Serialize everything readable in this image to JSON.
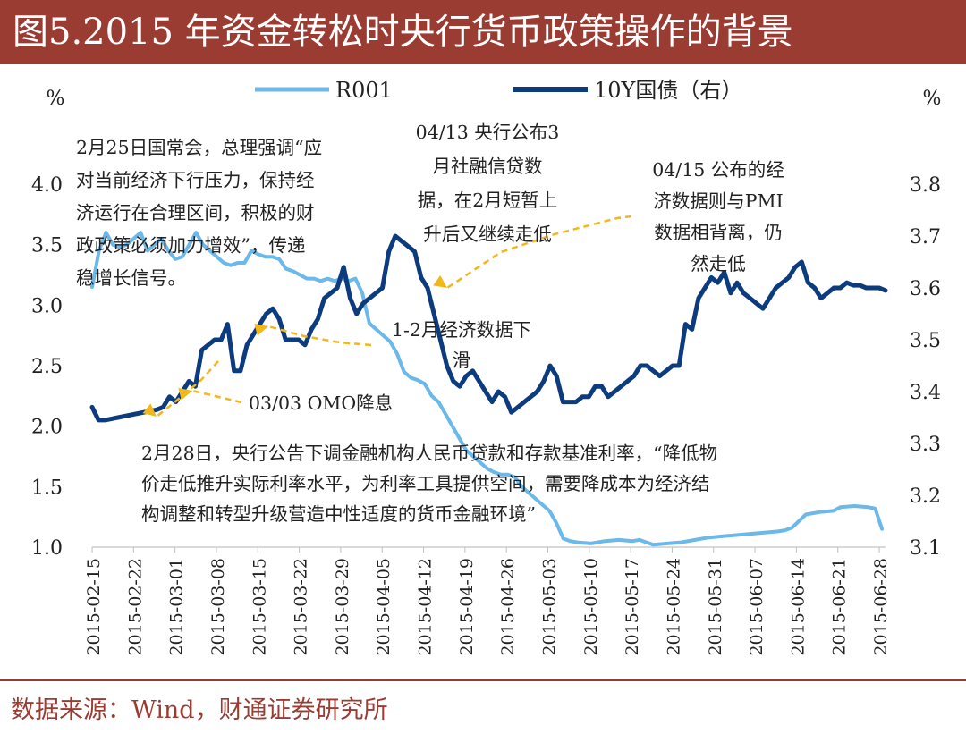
{
  "title": "图5.2015 年资金转松时央行货币政策操作的背景",
  "source": "数据来源：Wind，财通证券研究所",
  "colors": {
    "title_bg": "#9b3c33",
    "r001": "#6bb8ea",
    "bond": "#0d3c7e",
    "arrow": "#f2b71b",
    "text": "#222222"
  },
  "chart_data": {
    "type": "line",
    "left_unit": "%",
    "right_unit": "%",
    "left_ylim": [
      1.0,
      4.0
    ],
    "right_ylim": [
      3.1,
      3.8
    ],
    "left_ticks": [
      "1.0",
      "1.5",
      "2.0",
      "2.5",
      "3.0",
      "3.5",
      "4.0"
    ],
    "right_ticks": [
      "3.1",
      "3.2",
      "3.3",
      "3.4",
      "3.5",
      "3.6",
      "3.7",
      "3.8"
    ],
    "x_labels": [
      "2015-02-15",
      "2015-02-22",
      "2015-03-01",
      "2015-03-08",
      "2015-03-15",
      "2015-03-22",
      "2015-03-29",
      "2015-04-05",
      "2015-04-12",
      "2015-04-19",
      "2015-04-26",
      "2015-05-03",
      "2015-05-10",
      "2015-05-17",
      "2015-05-24",
      "2015-05-31",
      "2015-06-07",
      "2015-06-14",
      "2015-06-21",
      "2015-06-28"
    ],
    "legend": [
      "R001",
      "10Y国债（右）"
    ],
    "series": [
      {
        "name": "R001",
        "axis": "left",
        "points": [
          [
            0,
            3.15
          ],
          [
            1,
            3.45
          ],
          [
            2,
            3.6
          ],
          [
            3,
            3.5
          ],
          [
            4,
            3.48
          ],
          [
            5,
            3.5
          ],
          [
            6,
            3.55
          ],
          [
            7,
            3.6
          ],
          [
            8,
            3.45
          ],
          [
            9,
            3.5
          ],
          [
            10,
            3.55
          ],
          [
            11,
            3.45
          ],
          [
            12,
            3.38
          ],
          [
            13,
            3.4
          ],
          [
            14,
            3.5
          ],
          [
            15,
            3.6
          ],
          [
            16,
            3.5
          ],
          [
            17,
            3.45
          ],
          [
            18,
            3.4
          ],
          [
            19,
            3.35
          ],
          [
            20,
            3.33
          ],
          [
            21,
            3.35
          ],
          [
            22,
            3.35
          ],
          [
            23,
            3.45
          ],
          [
            24,
            3.42
          ],
          [
            25,
            3.4
          ],
          [
            26,
            3.4
          ],
          [
            27,
            3.38
          ],
          [
            28,
            3.3
          ],
          [
            29,
            3.28
          ],
          [
            30,
            3.25
          ],
          [
            31,
            3.22
          ],
          [
            32,
            3.22
          ],
          [
            33,
            3.2
          ],
          [
            34,
            3.22
          ],
          [
            35,
            3.2
          ],
          [
            36,
            3.22
          ],
          [
            37,
            3.2
          ],
          [
            38,
            3.22
          ],
          [
            39,
            3.1
          ],
          [
            40,
            2.85
          ],
          [
            41,
            2.8
          ],
          [
            42,
            2.75
          ],
          [
            43,
            2.7
          ],
          [
            44,
            2.6
          ],
          [
            45,
            2.45
          ],
          [
            46,
            2.4
          ],
          [
            47,
            2.38
          ],
          [
            48,
            2.35
          ],
          [
            49,
            2.25
          ],
          [
            50,
            2.2
          ],
          [
            51,
            2.1
          ],
          [
            52,
            2.0
          ],
          [
            53,
            1.9
          ],
          [
            54,
            1.8
          ],
          [
            55,
            1.75
          ],
          [
            56,
            1.7
          ],
          [
            57,
            1.65
          ],
          [
            58,
            1.62
          ],
          [
            59,
            1.6
          ],
          [
            60,
            1.6
          ],
          [
            61,
            1.58
          ],
          [
            62,
            1.5
          ],
          [
            63,
            1.45
          ],
          [
            64,
            1.4
          ],
          [
            65,
            1.35
          ],
          [
            66,
            1.3
          ],
          [
            67,
            1.2
          ],
          [
            68,
            1.07
          ],
          [
            69,
            1.05
          ],
          [
            70,
            1.04
          ],
          [
            72,
            1.03
          ],
          [
            74,
            1.05
          ],
          [
            76,
            1.06
          ],
          [
            78,
            1.05
          ],
          [
            79,
            1.06
          ],
          [
            80,
            1.04
          ],
          [
            81,
            1.02
          ],
          [
            83,
            1.03
          ],
          [
            85,
            1.04
          ],
          [
            87,
            1.06
          ],
          [
            89,
            1.08
          ],
          [
            91,
            1.09
          ],
          [
            93,
            1.1
          ],
          [
            95,
            1.11
          ],
          [
            97,
            1.12
          ],
          [
            99,
            1.13
          ],
          [
            100,
            1.14
          ],
          [
            101,
            1.16
          ],
          [
            103,
            1.27
          ],
          [
            105,
            1.29
          ],
          [
            107,
            1.3
          ],
          [
            108,
            1.33
          ],
          [
            110,
            1.34
          ],
          [
            112,
            1.33
          ],
          [
            113,
            1.32
          ],
          [
            114,
            1.15
          ]
        ]
      },
      {
        "name": "10Y国债（右）",
        "axis": "right",
        "points": [
          [
            0,
            3.37
          ],
          [
            1,
            3.345
          ],
          [
            2,
            3.345
          ],
          [
            4,
            3.35
          ],
          [
            6,
            3.355
          ],
          [
            8,
            3.36
          ],
          [
            10,
            3.365
          ],
          [
            11,
            3.37
          ],
          [
            12,
            3.39
          ],
          [
            13,
            3.38
          ],
          [
            14,
            3.4
          ],
          [
            15,
            3.42
          ],
          [
            16,
            3.41
          ],
          [
            17,
            3.48
          ],
          [
            18,
            3.49
          ],
          [
            19,
            3.5
          ],
          [
            20,
            3.5
          ],
          [
            21,
            3.53
          ],
          [
            22,
            3.44
          ],
          [
            23,
            3.44
          ],
          [
            24,
            3.49
          ],
          [
            25,
            3.51
          ],
          [
            26,
            3.53
          ],
          [
            27,
            3.55
          ],
          [
            28,
            3.56
          ],
          [
            29,
            3.54
          ],
          [
            30,
            3.5
          ],
          [
            31,
            3.5
          ],
          [
            32,
            3.5
          ],
          [
            33,
            3.49
          ],
          [
            34,
            3.52
          ],
          [
            35,
            3.54
          ],
          [
            36,
            3.58
          ],
          [
            37,
            3.59
          ],
          [
            38,
            3.6
          ],
          [
            39,
            3.64
          ],
          [
            40,
            3.58
          ],
          [
            41,
            3.55
          ],
          [
            42,
            3.57
          ],
          [
            43,
            3.58
          ],
          [
            44,
            3.59
          ],
          [
            45,
            3.6
          ],
          [
            46,
            3.67
          ],
          [
            47,
            3.7
          ],
          [
            48,
            3.69
          ],
          [
            49,
            3.68
          ],
          [
            50,
            3.67
          ],
          [
            51,
            3.62
          ],
          [
            52,
            3.6
          ],
          [
            53,
            3.55
          ],
          [
            54,
            3.5
          ],
          [
            55,
            3.45
          ],
          [
            56,
            3.42
          ],
          [
            57,
            3.41
          ],
          [
            58,
            3.43
          ],
          [
            59,
            3.44
          ],
          [
            60,
            3.42
          ],
          [
            61,
            3.4
          ],
          [
            62,
            3.38
          ],
          [
            63,
            3.4
          ],
          [
            64,
            3.39
          ],
          [
            65,
            3.36
          ],
          [
            66,
            3.37
          ],
          [
            67,
            3.38
          ],
          [
            68,
            3.39
          ],
          [
            69,
            3.4
          ],
          [
            70,
            3.42
          ],
          [
            71,
            3.45
          ],
          [
            72,
            3.43
          ],
          [
            73,
            3.38
          ],
          [
            74,
            3.38
          ],
          [
            75,
            3.38
          ],
          [
            76,
            3.39
          ],
          [
            77,
            3.39
          ],
          [
            78,
            3.41
          ],
          [
            79,
            3.41
          ],
          [
            80,
            3.39
          ],
          [
            81,
            3.4
          ],
          [
            82,
            3.41
          ],
          [
            83,
            3.42
          ],
          [
            84,
            3.43
          ],
          [
            85,
            3.45
          ],
          [
            86,
            3.45
          ],
          [
            87,
            3.44
          ],
          [
            88,
            3.43
          ],
          [
            89,
            3.44
          ],
          [
            90,
            3.45
          ],
          [
            91,
            3.45
          ],
          [
            92,
            3.53
          ],
          [
            93,
            3.52
          ],
          [
            94,
            3.58
          ],
          [
            95,
            3.6
          ],
          [
            96,
            3.62
          ],
          [
            97,
            3.61
          ],
          [
            98,
            3.63
          ],
          [
            99,
            3.59
          ],
          [
            100,
            3.61
          ],
          [
            101,
            3.59
          ],
          [
            102,
            3.58
          ],
          [
            103,
            3.57
          ],
          [
            104,
            3.56
          ],
          [
            105,
            3.58
          ],
          [
            106,
            3.6
          ],
          [
            107,
            3.61
          ],
          [
            108,
            3.62
          ],
          [
            109,
            3.64
          ],
          [
            110,
            3.65
          ],
          [
            111,
            3.61
          ],
          [
            112,
            3.6
          ],
          [
            113,
            3.58
          ],
          [
            114,
            3.59
          ],
          [
            115,
            3.6
          ],
          [
            116,
            3.6
          ],
          [
            117,
            3.61
          ],
          [
            118,
            3.605
          ],
          [
            119,
            3.605
          ],
          [
            120,
            3.6
          ],
          [
            121,
            3.6
          ],
          [
            122,
            3.6
          ],
          [
            123,
            3.595
          ]
        ]
      }
    ],
    "annotations": [
      {
        "id": "ann-0225",
        "lines": [
          "2月25日国常会，总理强调“应",
          "对当前经济下行压力，保持经",
          "济运行在合理区间，积极的财",
          "政政策必须加力增效”，传递",
          "稳增长信号。"
        ]
      },
      {
        "id": "ann-0413",
        "lines": [
          "04/13 央行公布3",
          "月社融信贷数",
          "据，在2月短暂上",
          "升后又继续走低"
        ]
      },
      {
        "id": "ann-0415",
        "lines": [
          "04/15 公布的经",
          "济数据则与PMI",
          "数据相背离，仍",
          "然走低"
        ]
      },
      {
        "id": "ann-1-2month",
        "lines": [
          "1-2月经济数据下",
          "滑"
        ]
      },
      {
        "id": "ann-0303",
        "lines": [
          "03/03 OMO降息"
        ]
      },
      {
        "id": "ann-0228",
        "lines": [
          "2月28日，央行公告下调金融机构人民币贷款和存款基准利率，“降低物",
          "价走低推升实际利率水平，为利率工具提供空间，需要降成本为经济结",
          "构调整和转型升级营造中性适度的货币金融环境”"
        ]
      }
    ]
  }
}
